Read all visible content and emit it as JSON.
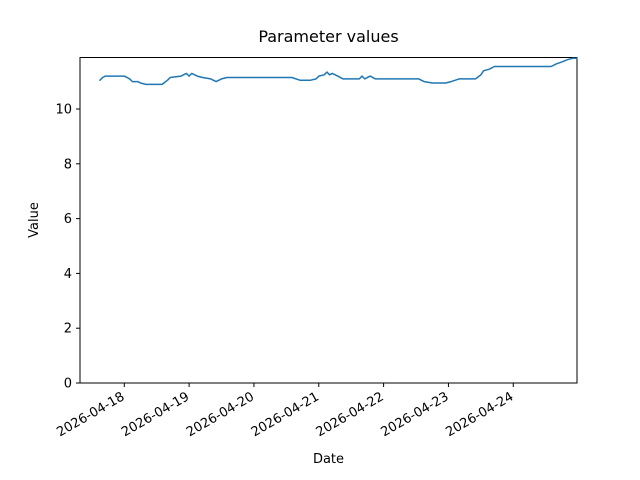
{
  "figure": {
    "background": "#ffffff",
    "frame_color": "#000000"
  },
  "chart_data": {
    "type": "line",
    "title": "Parameter values",
    "xlabel": "Date",
    "ylabel": "Value",
    "line_color": "#1f77b4",
    "grid": false,
    "legend": "none",
    "x_tick_labels": [
      "2026-04-18",
      "2026-04-19",
      "2026-04-20",
      "2026-04-21",
      "2026-04-22",
      "2026-04-23",
      "2026-04-24"
    ],
    "y_ticks": [
      0,
      2,
      4,
      6,
      8,
      10
    ],
    "ylim": [
      0,
      11.88
    ],
    "xlim_days_from_2026_04_18": [
      -0.683,
      6.983
    ],
    "x": [
      "2026-04-17T15:00",
      "2026-04-17T16:00",
      "2026-04-17T17:00",
      "2026-04-18T00:00",
      "2026-04-18T02:00",
      "2026-04-18T03:00",
      "2026-04-18T05:00",
      "2026-04-18T06:00",
      "2026-04-18T08:00",
      "2026-04-18T14:00",
      "2026-04-18T16:00",
      "2026-04-18T17:00",
      "2026-04-18T21:00",
      "2026-04-18T23:00",
      "2026-04-19T00:00",
      "2026-04-19T01:00",
      "2026-04-19T03:00",
      "2026-04-19T05:00",
      "2026-04-19T08:00",
      "2026-04-19T10:00",
      "2026-04-19T12:00",
      "2026-04-19T14:00",
      "2026-04-20T14:00",
      "2026-04-20T17:00",
      "2026-04-20T21:00",
      "2026-04-20T23:00",
      "2026-04-21T00:00",
      "2026-04-21T02:00",
      "2026-04-21T03:00",
      "2026-04-21T04:00",
      "2026-04-21T05:00",
      "2026-04-21T07:00",
      "2026-04-21T09:00",
      "2026-04-21T12:00",
      "2026-04-21T15:00",
      "2026-04-21T16:00",
      "2026-04-21T17:00",
      "2026-04-21T19:00",
      "2026-04-21T21:00",
      "2026-04-22T13:00",
      "2026-04-22T15:00",
      "2026-04-22T18:00",
      "2026-04-22T23:00",
      "2026-04-23T01:00",
      "2026-04-23T04:00",
      "2026-04-23T10:00",
      "2026-04-23T12:00",
      "2026-04-23T13:00",
      "2026-04-23T15:00",
      "2026-04-23T17:00",
      "2026-04-24T14:00",
      "2026-04-24T16:00",
      "2026-04-24T18:00",
      "2026-04-24T20:00",
      "2026-04-24T22:00",
      "2026-04-24T23:30"
    ],
    "y": [
      11.05,
      11.15,
      11.2,
      11.2,
      11.1,
      11.0,
      11.0,
      10.95,
      10.9,
      10.9,
      11.05,
      11.15,
      11.2,
      11.3,
      11.2,
      11.3,
      11.2,
      11.15,
      11.1,
      11.0,
      11.1,
      11.15,
      11.15,
      11.05,
      11.05,
      11.1,
      11.2,
      11.25,
      11.35,
      11.25,
      11.3,
      11.2,
      11.1,
      11.1,
      11.1,
      11.2,
      11.1,
      11.2,
      11.1,
      11.1,
      11.0,
      10.95,
      10.95,
      11.0,
      11.1,
      11.1,
      11.25,
      11.4,
      11.45,
      11.55,
      11.55,
      11.65,
      11.72,
      11.8,
      11.85,
      11.85
    ]
  }
}
